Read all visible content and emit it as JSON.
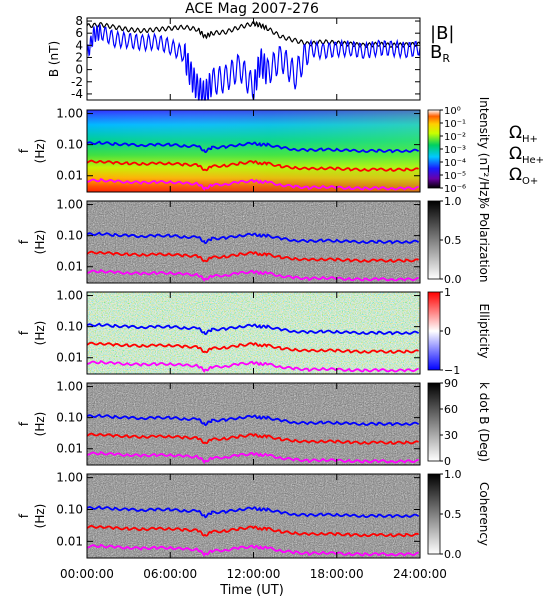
{
  "chart_data": {
    "type": "spectrogram",
    "title": "ACE Mag 2007-276",
    "xlabel": "Time (UT)",
    "x_ticks": [
      "00:00:00",
      "06:00:00",
      "12:00:00",
      "18:00:00",
      "24:00:00"
    ],
    "x_range_hours": [
      0,
      24
    ],
    "panels": [
      {
        "id": "field",
        "type": "line",
        "ylabel": "B (nT)",
        "ylim": [
          -5,
          8.5
        ],
        "y_ticks": [
          "8",
          "6",
          "4",
          "2",
          "0",
          "-2",
          "-4"
        ],
        "y_tick_values": [
          8,
          6,
          4,
          2,
          0,
          -2,
          -4
        ],
        "legend": [
          {
            "label": "|B|",
            "color": "#000000"
          },
          {
            "label": "B",
            "sub": "R",
            "color": "#0000ff"
          }
        ],
        "series": [
          {
            "name": "|B|",
            "color": "#000000",
            "x": [
              0,
              1,
              2,
              3,
              4,
              5,
              6,
              7,
              8,
              8.5,
              9,
              10,
              11,
              12,
              12.5,
              13,
              14,
              15,
              16,
              17,
              18,
              19,
              20,
              21,
              22,
              23,
              24
            ],
            "y": [
              7.2,
              7.4,
              7.0,
              6.6,
              6.4,
              6.6,
              6.8,
              7.0,
              6.6,
              5.4,
              6.0,
              6.2,
              7.0,
              7.6,
              7.3,
              6.8,
              5.4,
              4.8,
              4.2,
              4.6,
              4.4,
              4.2,
              4.0,
              4.2,
              4.0,
              4.1,
              4.2
            ]
          },
          {
            "name": "B_R",
            "color": "#0000ff",
            "x": [
              0,
              0.5,
              1,
              2,
              3,
              4,
              5,
              6,
              7,
              7.5,
              8,
              8.5,
              9,
              10,
              11,
              12,
              12.5,
              13,
              14,
              15,
              16,
              17,
              18,
              19,
              20,
              21,
              22,
              23,
              24
            ],
            "y": [
              2.5,
              5.8,
              6.2,
              5.0,
              4.8,
              4.4,
              4.6,
              3.8,
              2.5,
              -1.0,
              -3.2,
              -4.3,
              -2.0,
              -1.5,
              0.5,
              -3.2,
              1.5,
              -0.5,
              2.0,
              -1.0,
              3.5,
              3.0,
              3.4,
              3.5,
              3.0,
              3.6,
              3.5,
              3.2,
              3.6
            ]
          }
        ]
      },
      {
        "id": "intensity",
        "type": "heatmap",
        "ylabel": "f (Hz)",
        "y_scale": "log",
        "ylim": [
          0.003,
          1.3
        ],
        "y_ticks": [
          "1.00",
          "0.10",
          "0.01"
        ],
        "y_tick_values": [
          1,
          0.1,
          0.01
        ],
        "colorbar": {
          "label": "Intensity (nT²/Hz)",
          "scale": "rainbow",
          "ticks": [
            "10⁰",
            "10⁻¹",
            "10⁻²",
            "10⁻³",
            "10⁻⁴",
            "10⁻⁵",
            "10⁻⁶"
          ]
        },
        "background": "rainbow"
      },
      {
        "id": "polarization",
        "type": "heatmap",
        "ylabel": "f (Hz)",
        "y_scale": "log",
        "y_ticks": [
          "1.00",
          "0.10",
          "0.01"
        ],
        "colorbar": {
          "label": "% Polarization",
          "scale": "gray",
          "ticks": [
            "1.0",
            "0.5",
            "0.0"
          ]
        },
        "background": "gray"
      },
      {
        "id": "ellipticity",
        "type": "heatmap",
        "ylabel": "f (Hz)",
        "y_scale": "log",
        "y_ticks": [
          "1.00",
          "0.10",
          "0.01"
        ],
        "colorbar": {
          "label": "Ellipticity",
          "scale": "bwr",
          "ticks": [
            "1",
            "0",
            "−1"
          ]
        },
        "background": "bwr"
      },
      {
        "id": "kdotb",
        "type": "heatmap",
        "ylabel": "f (Hz)",
        "y_scale": "log",
        "y_ticks": [
          "1.00",
          "0.10",
          "0.01"
        ],
        "colorbar": {
          "label": "k dot B (Deg)",
          "scale": "gray",
          "ticks": [
            "90",
            "60",
            "30",
            "0"
          ]
        },
        "background": "gray"
      },
      {
        "id": "coherency",
        "type": "heatmap",
        "ylabel": "f (Hz)",
        "y_scale": "log",
        "y_ticks": [
          "1.00",
          "0.10",
          "0.01"
        ],
        "colorbar": {
          "label": "Coherency",
          "scale": "gray",
          "ticks": [
            "1.0",
            "0.5",
            "0.0"
          ]
        },
        "background": "gray"
      }
    ],
    "gyrofrequency_legend": [
      {
        "label": "Ω",
        "sub": "H+",
        "color": "#0000ff"
      },
      {
        "label": "Ω",
        "sub": "He+",
        "color": "#ff0000"
      },
      {
        "label": "Ω",
        "sub": "O+",
        "color": "#ff00ff"
      }
    ],
    "gyrofrequency_series": [
      {
        "name": "ΩH+",
        "color": "#0000ff",
        "x": [
          0,
          1,
          2,
          3,
          4,
          5,
          6,
          7,
          8,
          8.5,
          9,
          10,
          11,
          12,
          12.5,
          13,
          14,
          15,
          16,
          17,
          18,
          19,
          20,
          21,
          22,
          23,
          24
        ],
        "y": [
          0.11,
          0.115,
          0.105,
          0.1,
          0.095,
          0.1,
          0.1,
          0.09,
          0.09,
          0.06,
          0.08,
          0.085,
          0.1,
          0.11,
          0.1,
          0.1,
          0.08,
          0.07,
          0.066,
          0.07,
          0.068,
          0.064,
          0.062,
          0.064,
          0.062,
          0.063,
          0.065
        ]
      },
      {
        "name": "ΩHe+",
        "color": "#ff0000",
        "x": [
          0,
          1,
          2,
          3,
          4,
          5,
          6,
          7,
          8,
          8.5,
          9,
          10,
          11,
          12,
          12.5,
          13,
          14,
          15,
          16,
          17,
          18,
          19,
          20,
          21,
          22,
          23,
          24
        ],
        "y": [
          0.028,
          0.029,
          0.026,
          0.025,
          0.024,
          0.025,
          0.025,
          0.023,
          0.022,
          0.015,
          0.02,
          0.021,
          0.025,
          0.028,
          0.025,
          0.025,
          0.02,
          0.018,
          0.0165,
          0.0175,
          0.017,
          0.016,
          0.0155,
          0.016,
          0.0155,
          0.0158,
          0.0162
        ]
      },
      {
        "name": "ΩO+",
        "color": "#ff00ff",
        "x": [
          0,
          1,
          2,
          3,
          4,
          5,
          6,
          7,
          8,
          8.5,
          9,
          10,
          11,
          12,
          12.5,
          13,
          14,
          15,
          16,
          17,
          18,
          19,
          20,
          21,
          22,
          23,
          24
        ],
        "y": [
          0.0069,
          0.0072,
          0.0066,
          0.0063,
          0.006,
          0.0063,
          0.0063,
          0.0057,
          0.0055,
          0.0038,
          0.005,
          0.0053,
          0.0063,
          0.0069,
          0.0063,
          0.0063,
          0.005,
          0.0045,
          0.0041,
          0.0044,
          0.0042,
          0.004,
          0.0039,
          0.004,
          0.0039,
          0.0039,
          0.0041
        ]
      }
    ]
  }
}
